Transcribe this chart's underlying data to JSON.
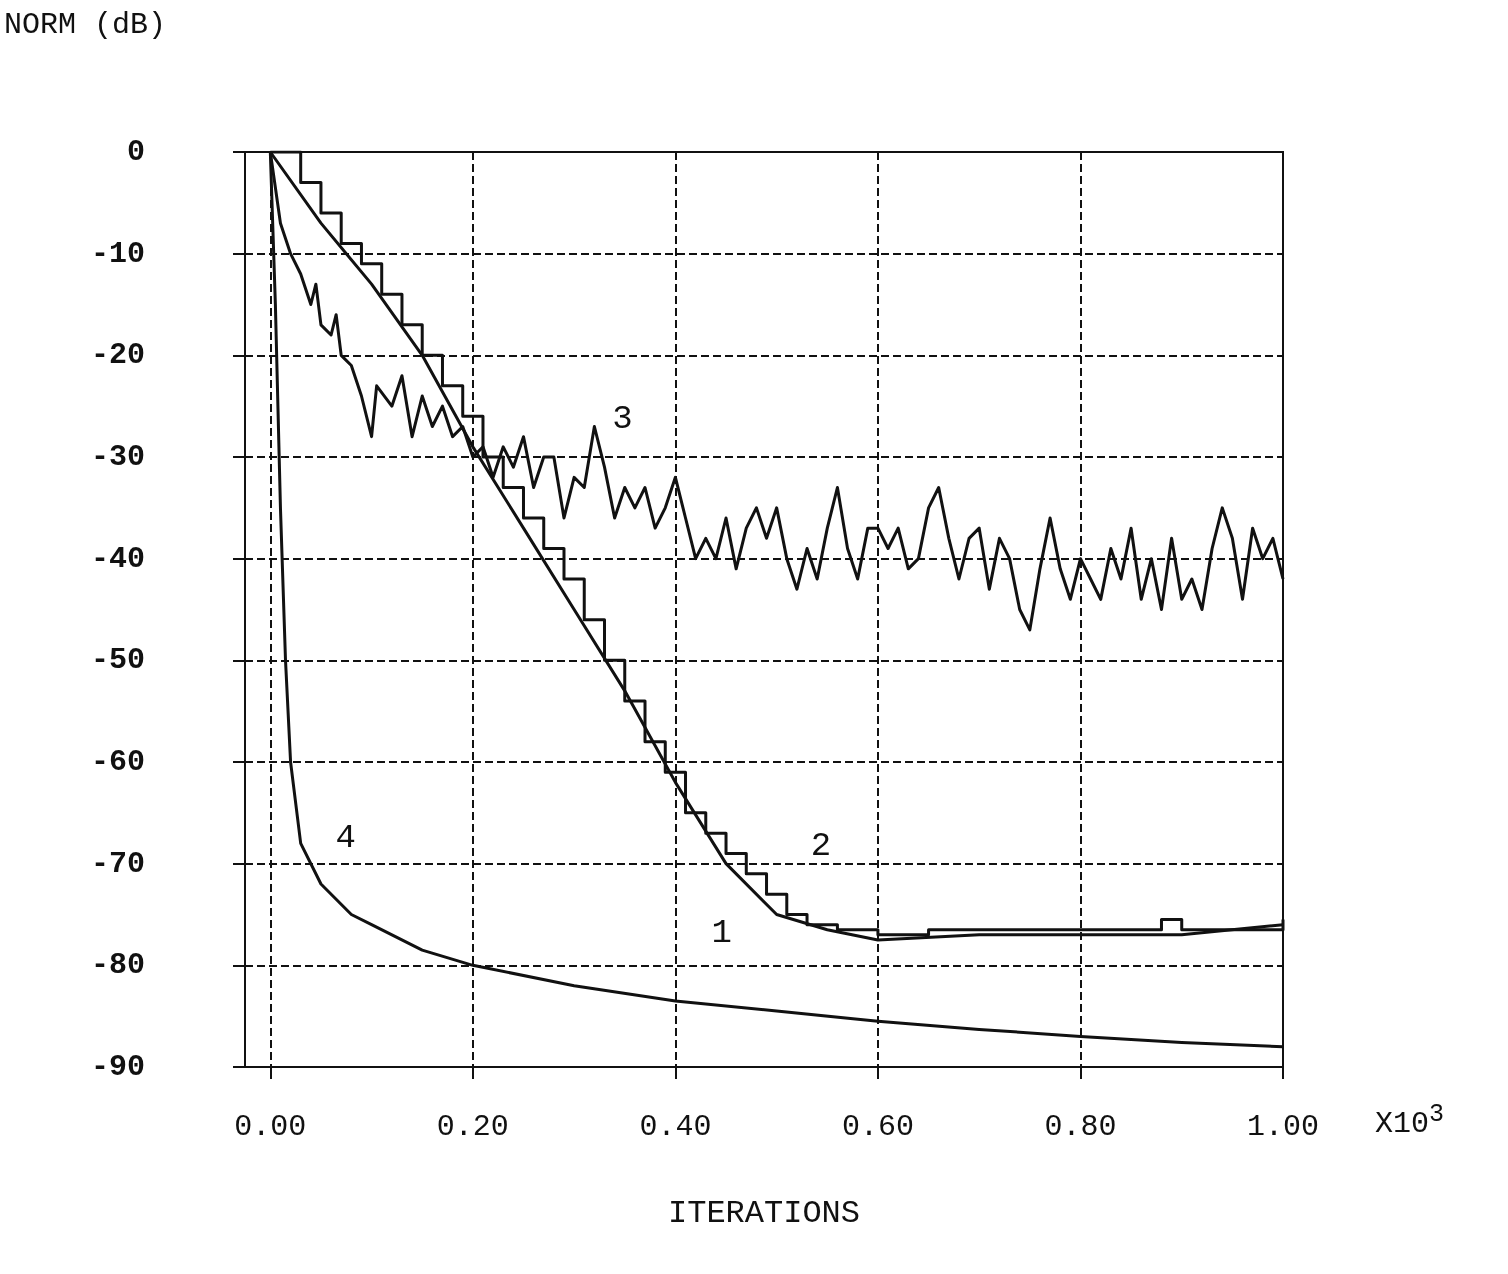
{
  "chart_data": {
    "type": "line",
    "xlabel": "ITERATIONS",
    "ylabel": "NORM (dB)",
    "annotations": [
      "X10$^{3}$",
      {
        "text": "1",
        "x": 0.5,
        "y": -75
      },
      {
        "text": "2",
        "x": 0.45,
        "y": -69
      },
      {
        "text": "3",
        "x": 0.32,
        "y": -27
      },
      {
        "text": "4",
        "x": 0.03,
        "y": -68
      }
    ],
    "xlim": [
      -0.025,
      1.0
    ],
    "xticks": [
      {
        "value": 0,
        "label": "0.00"
      },
      {
        "value": 0.2,
        "label": "0.20"
      },
      {
        "value": 0.4,
        "label": "0.40"
      },
      {
        "value": 0.6,
        "label": "0.60"
      },
      {
        "value": 0.8,
        "label": "0.80"
      },
      {
        "value": 1.0,
        "label": "1.00"
      }
    ],
    "ylim": [
      -90,
      0
    ],
    "yticks": [
      0,
      -10,
      -20,
      -30,
      -40,
      -50,
      -60,
      -70,
      -80,
      -90
    ],
    "grid": true,
    "marker": "none",
    "line_style": "solid",
    "series": [
      {
        "type": "line",
        "color": "#111111",
        "x": [
          0,
          0.05,
          0.1,
          0.15,
          0.2,
          0.25,
          0.3,
          0.35,
          0.4,
          0.45,
          0.5,
          0.55,
          0.6,
          0.7,
          0.8,
          0.9,
          1.0
        ],
        "values": [
          0,
          -7,
          -13,
          -20,
          -29,
          -37,
          -45,
          -53,
          -62,
          -70,
          -75,
          -76.5,
          -77.5,
          -77,
          -77,
          -77,
          -76
        ]
      },
      {
        "type": "step",
        "color": "#111111",
        "x": [
          0,
          0.03,
          0.05,
          0.07,
          0.09,
          0.11,
          0.13,
          0.15,
          0.17,
          0.19,
          0.21,
          0.23,
          0.25,
          0.27,
          0.29,
          0.31,
          0.33,
          0.35,
          0.37,
          0.39,
          0.41,
          0.43,
          0.45,
          0.47,
          0.49,
          0.51,
          0.53,
          0.56,
          0.6,
          0.65,
          0.7,
          0.8,
          0.88,
          0.9,
          1.0
        ],
        "values": [
          0,
          -3,
          -6,
          -9,
          -11,
          -14,
          -17,
          -20,
          -23,
          -26,
          -30,
          -33,
          -36,
          -39,
          -42,
          -46,
          -50,
          -54,
          -58,
          -61,
          -65,
          -67,
          -69,
          -71,
          -73,
          -75,
          -76,
          -76.5,
          -77,
          -76.5,
          -76.5,
          -76.5,
          -75.5,
          -76.5,
          -75.5
        ]
      },
      {
        "type": "line",
        "color": "#111111",
        "x": [
          0,
          0.01,
          0.02,
          0.03,
          0.04,
          0.045,
          0.05,
          0.06,
          0.065,
          0.07,
          0.08,
          0.09,
          0.1,
          0.105,
          0.12,
          0.13,
          0.14,
          0.15,
          0.16,
          0.17,
          0.18,
          0.19,
          0.2,
          0.21,
          0.22,
          0.23,
          0.24,
          0.25,
          0.26,
          0.27,
          0.28,
          0.29,
          0.3,
          0.31,
          0.32,
          0.33,
          0.34,
          0.35,
          0.36,
          0.37,
          0.38,
          0.39,
          0.4,
          0.41,
          0.42,
          0.43,
          0.44,
          0.45,
          0.46,
          0.47,
          0.48,
          0.49,
          0.5,
          0.51,
          0.52,
          0.53,
          0.54,
          0.55,
          0.56,
          0.57,
          0.58,
          0.59,
          0.6,
          0.61,
          0.62,
          0.63,
          0.64,
          0.65,
          0.66,
          0.67,
          0.68,
          0.69,
          0.7,
          0.71,
          0.72,
          0.73,
          0.74,
          0.75,
          0.76,
          0.77,
          0.78,
          0.79,
          0.8,
          0.81,
          0.82,
          0.83,
          0.84,
          0.85,
          0.86,
          0.87,
          0.88,
          0.89,
          0.9,
          0.91,
          0.92,
          0.93,
          0.94,
          0.95,
          0.96,
          0.97,
          0.98,
          0.99,
          1.0
        ],
        "values": [
          0,
          -7,
          -10,
          -12,
          -15,
          -13,
          -17,
          -18,
          -16,
          -20,
          -21,
          -24,
          -28,
          -23,
          -25,
          -22,
          -28,
          -24,
          -27,
          -25,
          -28,
          -27,
          -30,
          -29,
          -32,
          -29,
          -31,
          -28,
          -33,
          -30,
          -30,
          -36,
          -32,
          -33,
          -27,
          -31,
          -36,
          -33,
          -35,
          -33,
          -37,
          -35,
          -32,
          -36,
          -40,
          -38,
          -40,
          -36,
          -41,
          -37,
          -35,
          -38,
          -35,
          -40,
          -43,
          -39,
          -42,
          -37,
          -33,
          -39,
          -42,
          -37,
          -37,
          -39,
          -37,
          -41,
          -40,
          -35,
          -33,
          -38,
          -42,
          -38,
          -37,
          -43,
          -38,
          -40,
          -45,
          -47,
          -41,
          -36,
          -41,
          -44,
          -40,
          -42,
          -44,
          -39,
          -42,
          -37,
          -44,
          -40,
          -45,
          -38,
          -44,
          -42,
          -45,
          -39,
          -35,
          -38,
          -44,
          -37,
          -40,
          -38,
          -42
        ]
      },
      {
        "type": "line",
        "color": "#111111",
        "x": [
          0,
          0.005,
          0.01,
          0.015,
          0.02,
          0.03,
          0.05,
          0.08,
          0.1,
          0.15,
          0.2,
          0.3,
          0.4,
          0.5,
          0.6,
          0.7,
          0.8,
          0.9,
          1.0
        ],
        "values": [
          0,
          -15,
          -35,
          -50,
          -60,
          -68,
          -72,
          -75,
          -76,
          -78.5,
          -80,
          -82,
          -83.5,
          -84.5,
          -85.5,
          -86.3,
          -87,
          -87.6,
          -88
        ]
      }
    ]
  }
}
